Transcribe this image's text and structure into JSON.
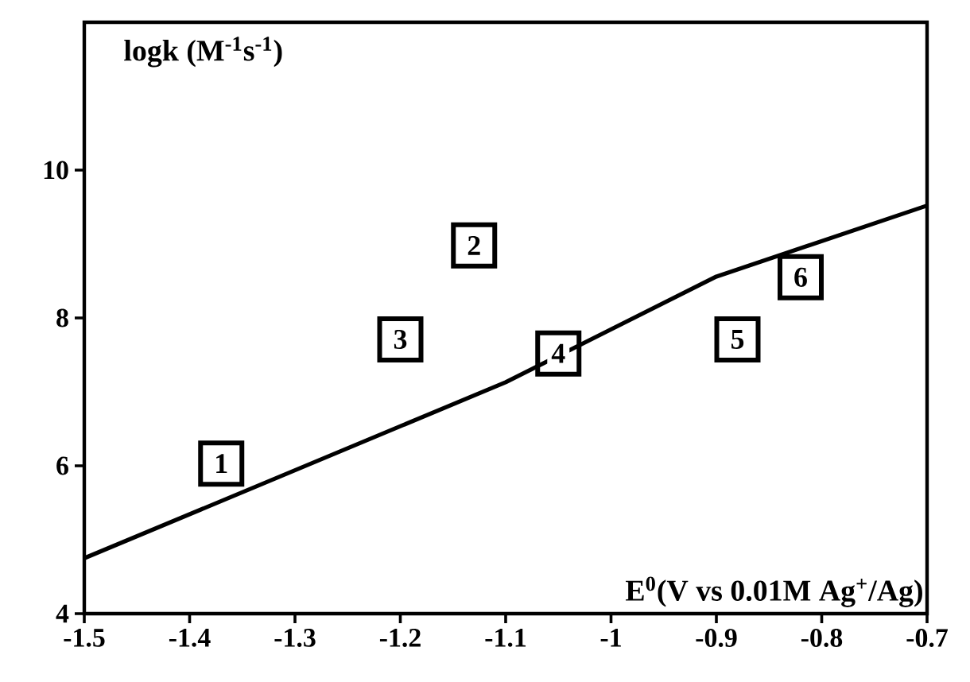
{
  "chart_data": {
    "type": "scatter",
    "xlabel": "E$^{0}$(V vs 0.01M Ag$^{+}$/Ag)",
    "ylabel": "logk (M$^{-1}$s$^{-1}$)",
    "xlim": [
      -1.5,
      -0.7
    ],
    "ylim": [
      4,
      12
    ],
    "xticks": [
      -1.5,
      -1.4,
      -1.3,
      -1.2,
      -1.1,
      {
        "value": -1,
        "label": "-1"
      },
      -0.9,
      -0.8,
      -0.7
    ],
    "yticks": [
      4,
      6,
      8,
      10
    ],
    "grid": false,
    "series": [
      {
        "marker": "square",
        "color": "#000000",
        "x": [
          -1.37,
          -1.13,
          -1.2,
          -1.05,
          -0.88,
          -0.82
        ],
        "values": [
          6.03,
          8.98,
          7.71,
          7.52,
          7.71,
          8.55
        ]
      },
      {
        "type": "line",
        "marker": "none",
        "line_style": "solid",
        "color": "#000000",
        "x": [
          -1.5,
          -1.1,
          -0.9,
          -0.7
        ],
        "values": [
          4.75,
          7.13,
          8.56,
          9.52
        ]
      }
    ],
    "annotations": [
      {
        "text": "1",
        "x": -1.37,
        "y": 6.03
      },
      {
        "text": "2",
        "x": -1.13,
        "y": 8.98
      },
      {
        "text": "3",
        "x": -1.2,
        "y": 7.71
      },
      {
        "text": "4",
        "x": -1.05,
        "y": 7.52
      },
      {
        "text": "5",
        "x": -0.88,
        "y": 7.71
      },
      {
        "text": "6",
        "x": -0.82,
        "y": 8.55
      }
    ]
  }
}
